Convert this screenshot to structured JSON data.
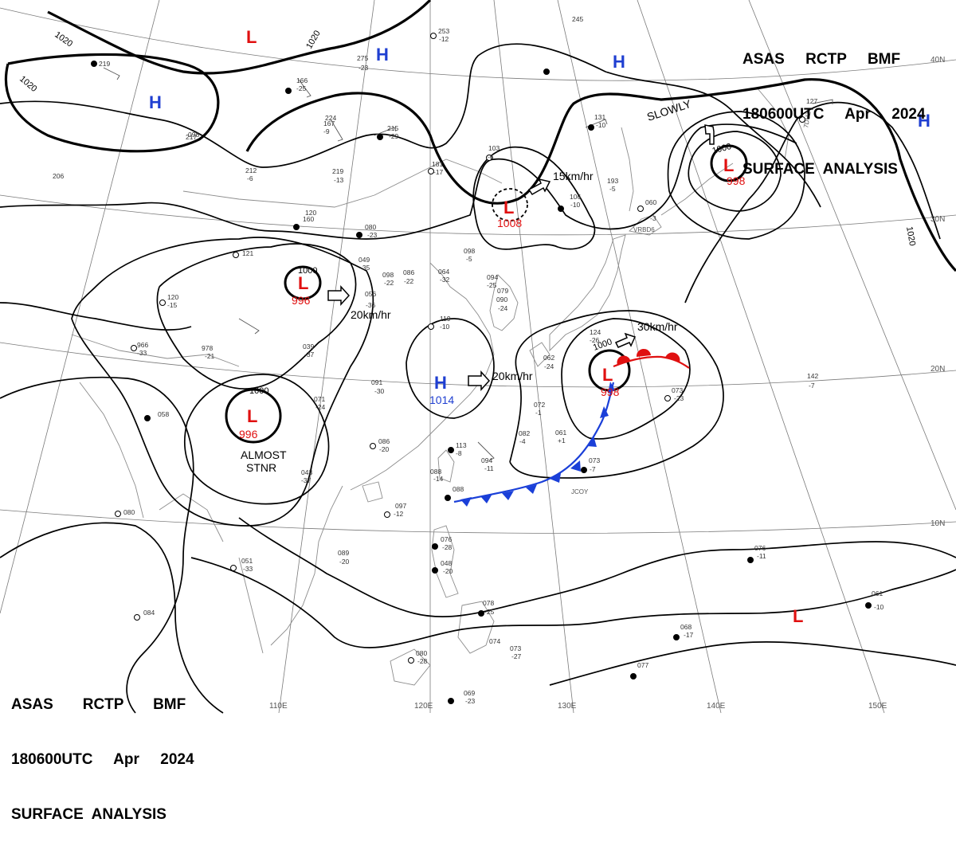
{
  "header_top_right": {
    "line1": "ASAS     RCTP     BMF",
    "line2": "180600UTC     Apr     2024",
    "line3": "SURFACE  ANALYSIS"
  },
  "header_bottom_left": {
    "line1": "ASAS       RCTP       BMF",
    "line2": "180600UTC     Apr     2024",
    "line3": "SURFACE  ANALYSIS"
  },
  "longitude_labels": [
    "110E",
    "120E",
    "130E",
    "140E",
    "150E"
  ],
  "latitude_labels": [
    "40N",
    "30N",
    "20N",
    "10N"
  ],
  "isobar_labels": {
    "nw_1020_a": "1020",
    "nw_1020_b": "1020",
    "n_1020": "1020",
    "ne_1020": "1020",
    "low_996_ring": "1000",
    "low_sw_ring": "1000",
    "low_typhoon_ring": "1000",
    "low_ne_ring": "1000"
  },
  "pressure_centers": [
    {
      "id": "H-nw",
      "symbol": "H",
      "color": "#1f3fd1"
    },
    {
      "id": "H-n",
      "symbol": "H",
      "color": "#1f3fd1"
    },
    {
      "id": "H-ne",
      "symbol": "H",
      "color": "#1f3fd1"
    },
    {
      "id": "H-east-edge",
      "symbol": "H",
      "color": "#1f3fd1"
    },
    {
      "id": "H-scs",
      "symbol": "H",
      "value": "1014",
      "color": "#1f3fd1"
    },
    {
      "id": "L-north",
      "symbol": "L",
      "color": "#e01010"
    },
    {
      "id": "L-central",
      "symbol": "L",
      "value": "996",
      "color": "#e01010"
    },
    {
      "id": "L-southwest",
      "symbol": "L",
      "value": "996",
      "color": "#e01010"
    },
    {
      "id": "L-yellow-sea",
      "symbol": "L",
      "value": "1008",
      "color": "#e01010"
    },
    {
      "id": "L-east-china-sea",
      "symbol": "L",
      "value": "998",
      "color": "#e01010"
    },
    {
      "id": "L-northeast",
      "symbol": "L",
      "value": "998",
      "color": "#e01010"
    },
    {
      "id": "L-southeast",
      "symbol": "L",
      "color": "#e01010"
    }
  ],
  "motion_labels": {
    "central": "20km/hr",
    "scs": "20km/hr",
    "yellow_sea": "15km/hr",
    "front_low": "30km/hr",
    "northeast": "SLOWLY",
    "southwest_line1": "ALMOST",
    "southwest_line2": "STNR"
  },
  "station_samples": [
    {
      "p": "219",
      "t": ""
    },
    {
      "p": "275",
      "t": "-23"
    },
    {
      "p": "253",
      "t": "-12"
    },
    {
      "p": "245",
      "t": ""
    },
    {
      "p": "181",
      "t": "-17"
    },
    {
      "p": "103",
      "t": "-6"
    },
    {
      "p": "098",
      "t": "-5"
    },
    {
      "p": "080",
      "t": "-23"
    },
    {
      "p": "049",
      "t": "-35"
    },
    {
      "p": "056",
      "t": "-36"
    },
    {
      "p": "086",
      "t": "-22"
    },
    {
      "p": "039",
      "t": "-37"
    },
    {
      "p": "119",
      "t": "-10"
    },
    {
      "p": "091",
      "t": "-30"
    },
    {
      "p": "071",
      "t": "-24"
    },
    {
      "p": "086",
      "t": "-20"
    },
    {
      "p": "113",
      "t": "-8"
    },
    {
      "p": "094",
      "t": "-11"
    },
    {
      "p": "072",
      "t": "-1"
    },
    {
      "p": "082",
      "t": "-4"
    },
    {
      "p": "061",
      "t": "+1"
    },
    {
      "p": "073",
      "t": "-7"
    },
    {
      "p": "073",
      "t": "-23"
    },
    {
      "p": "142",
      "t": "-7"
    },
    {
      "p": "060",
      "t": "-3"
    },
    {
      "p": "193",
      "t": "-5"
    },
    {
      "p": "106",
      "t": "-10"
    },
    {
      "p": "131",
      "t": "-10"
    },
    {
      "p": "076",
      "t": "-28"
    },
    {
      "p": "048",
      "t": "-20"
    },
    {
      "p": "078",
      "t": "-25"
    },
    {
      "p": "074",
      "t": ""
    },
    {
      "p": "073",
      "t": "-27"
    },
    {
      "p": "080",
      "t": "-28"
    },
    {
      "p": "069",
      "t": "-23"
    },
    {
      "p": "077",
      "t": ""
    },
    {
      "p": "068",
      "t": "-17"
    },
    {
      "p": "076",
      "t": "-11"
    },
    {
      "p": "061",
      "t": "-10"
    },
    {
      "p": "097",
      "t": "-12"
    },
    {
      "p": "089",
      "t": "-20"
    },
    {
      "p": "051",
      "t": "-33"
    },
    {
      "p": "084",
      "t": ""
    },
    {
      "p": "080",
      "t": ""
    },
    {
      "p": "058",
      "t": ""
    },
    {
      "p": "966",
      "t": "-33"
    },
    {
      "p": "978",
      "t": "-21"
    },
    {
      "p": "121",
      "t": ""
    },
    {
      "p": "120",
      "t": "-15"
    },
    {
      "p": "043",
      "t": "-37"
    },
    {
      "p": "088",
      "t": "-14"
    },
    {
      "p": "088",
      "t": ""
    },
    {
      "p": "160",
      "t": ""
    },
    {
      "p": "224",
      "t": ""
    },
    {
      "p": "215",
      "t": "-29"
    },
    {
      "p": "212",
      "t": "-6"
    },
    {
      "p": "219",
      "t": "-13"
    },
    {
      "p": "167",
      "t": "-9"
    },
    {
      "p": "166",
      "t": "-25"
    },
    {
      "p": "217",
      "t": ""
    },
    {
      "p": "206",
      "t": ""
    },
    {
      "p": "098",
      "t": ""
    },
    {
      "p": "120",
      "t": ""
    },
    {
      "p": "127",
      "t": ""
    },
    {
      "p": "124",
      "t": "-26"
    },
    {
      "p": "079",
      "t": ""
    },
    {
      "p": "090",
      "t": "-24"
    },
    {
      "p": "094",
      "t": "-25"
    },
    {
      "p": "062",
      "t": "-24"
    },
    {
      "p": "098",
      "t": "-22"
    },
    {
      "p": "064",
      "t": "-32"
    }
  ],
  "station_ids": [
    "JCOY",
    "VRBD6",
    "7DHZ"
  ]
}
